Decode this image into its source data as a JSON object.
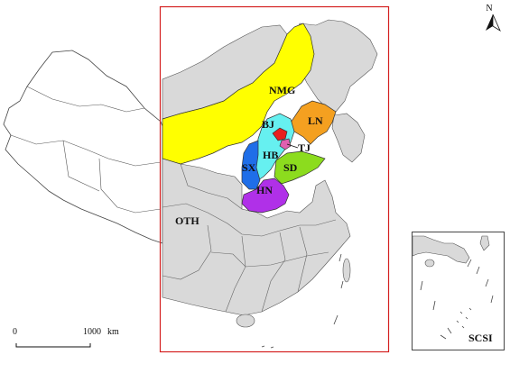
{
  "north": {
    "label": "N"
  },
  "scale": {
    "start": "0",
    "end": "1000",
    "unit": "km"
  },
  "inset": {
    "label": "SCSI"
  },
  "regions": {
    "nmg": {
      "label": "NMG",
      "color": "#ffff00"
    },
    "ln": {
      "label": "LN",
      "color": "#f4a020"
    },
    "bj": {
      "label": "BJ",
      "color": "#e8201e"
    },
    "tj": {
      "label": "TJ",
      "color": "#e060b0"
    },
    "hb": {
      "label": "HB",
      "color": "#66f0f0"
    },
    "sx": {
      "label": "SX",
      "color": "#1f6ee8"
    },
    "sd": {
      "label": "SD",
      "color": "#8cdc1e"
    },
    "hn": {
      "label": "HN",
      "color": "#b030e8"
    },
    "oth": {
      "label": "OTH",
      "color": "#d9d9d9"
    }
  },
  "frame_color": "#d42020"
}
